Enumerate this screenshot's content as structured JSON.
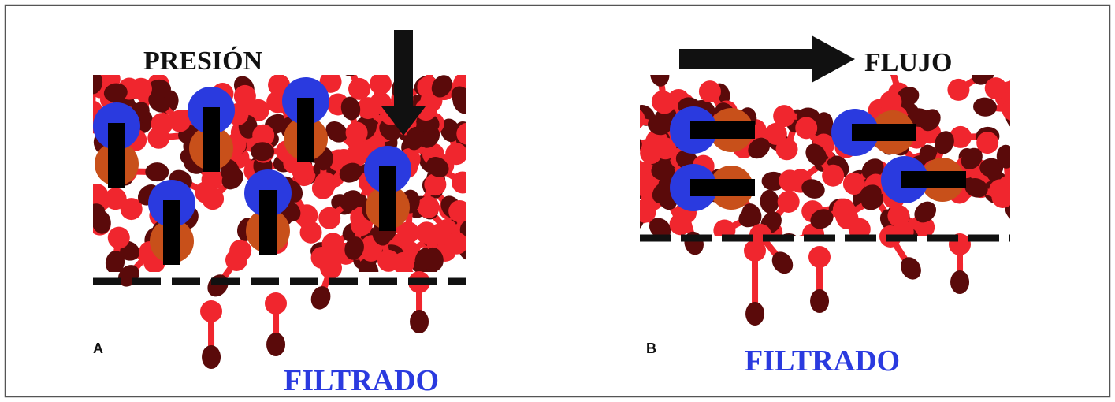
{
  "panel_a": {
    "label": "A",
    "pressure_label": "PRESIÓN",
    "filtrate_label": "FILTRADO"
  },
  "panel_b": {
    "label": "B",
    "flow_label": "FLUJO",
    "filtrate_label": "FILTRADO"
  }
}
